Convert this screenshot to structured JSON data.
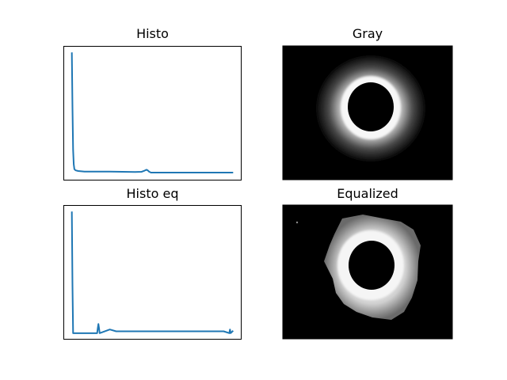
{
  "figure": {
    "background": "#ffffff",
    "line_color": "#1f77b4",
    "frame_color": "#000000"
  },
  "panels": {
    "histo": {
      "title": "Histo"
    },
    "gray": {
      "title": "Gray"
    },
    "histo_eq": {
      "title": "Histo eq"
    },
    "equalized": {
      "title": "Equalized"
    }
  },
  "chart_data": [
    {
      "type": "line",
      "title": "Histo",
      "xlabel": "",
      "ylabel": "",
      "axis_ticks": false,
      "grid": false,
      "x": [
        0,
        1,
        2,
        3,
        4,
        6,
        10,
        20,
        40,
        60,
        80,
        100,
        110,
        115,
        118,
        120,
        122,
        125,
        130,
        150,
        200,
        255
      ],
      "values": [
        1.0,
        0.55,
        0.2,
        0.08,
        0.04,
        0.03,
        0.025,
        0.02,
        0.02,
        0.02,
        0.018,
        0.017,
        0.018,
        0.028,
        0.035,
        0.03,
        0.02,
        0.012,
        0.012,
        0.012,
        0.012,
        0.012
      ],
      "xlim": [
        -12.75,
        267.75
      ],
      "ylim": [
        -0.05,
        1.05
      ]
    },
    {
      "type": "image",
      "title": "Gray"
    },
    {
      "type": "line",
      "title": "Histo eq",
      "xlabel": "",
      "ylabel": "",
      "axis_ticks": false,
      "grid": false,
      "x": [
        0,
        1,
        2,
        3,
        4,
        5,
        40,
        41,
        42,
        43,
        44,
        60,
        70,
        80,
        90,
        100,
        110,
        120,
        130,
        140,
        150,
        160,
        170,
        180,
        190,
        200,
        210,
        220,
        230,
        240,
        249,
        250,
        251,
        255
      ],
      "values": [
        1.0,
        0.4,
        0.0,
        0.0,
        0.0,
        0.0,
        0.0,
        0.04,
        0.075,
        0.04,
        0.0,
        0.03,
        0.015,
        0.015,
        0.015,
        0.015,
        0.015,
        0.015,
        0.015,
        0.015,
        0.015,
        0.015,
        0.015,
        0.015,
        0.015,
        0.015,
        0.015,
        0.015,
        0.015,
        0.015,
        0.0,
        0.03,
        0.0,
        0.02
      ],
      "xlim": [
        -12.75,
        267.75
      ],
      "ylim": [
        -0.05,
        1.05
      ]
    },
    {
      "type": "image",
      "title": "Equalized"
    }
  ]
}
